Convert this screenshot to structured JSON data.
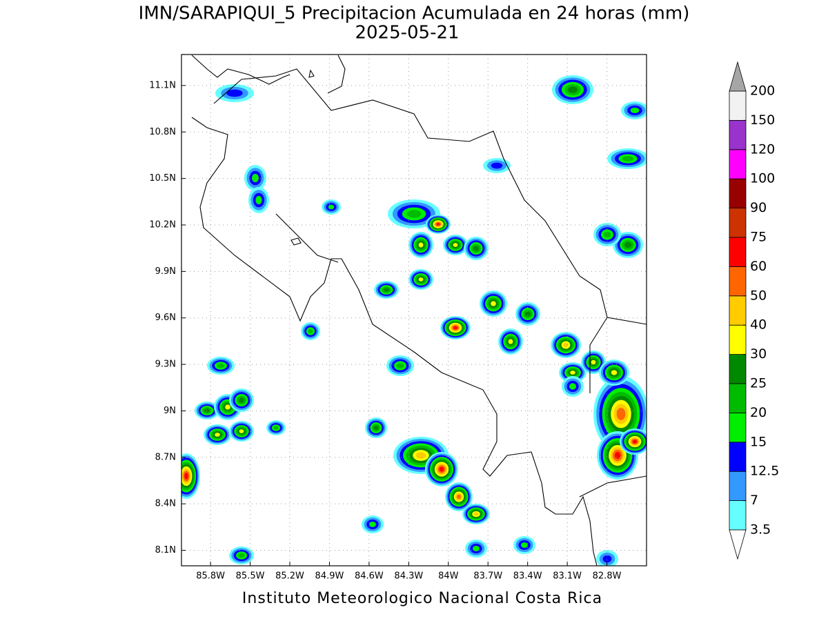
{
  "map": {
    "title": "IMN/SARAPIQUI_5 Precipitacion Acumulada en 24 horas (mm)",
    "subtitle": "2025-05-21",
    "footer": "Instituto Meteorologico Nacional Costa Rica",
    "lonlim": [
      -86.02,
      -82.5
    ],
    "latlim": [
      8.0,
      11.3
    ],
    "lon_ticks": [
      {
        "value": -85.8,
        "label": "85.8W"
      },
      {
        "value": -85.5,
        "label": "85.5W"
      },
      {
        "value": -85.2,
        "label": "85.2W"
      },
      {
        "value": -84.9,
        "label": "84.9W"
      },
      {
        "value": -84.6,
        "label": "84.6W"
      },
      {
        "value": -84.3,
        "label": "84.3W"
      },
      {
        "value": -84.0,
        "label": "84W"
      },
      {
        "value": -83.7,
        "label": "83.7W"
      },
      {
        "value": -83.4,
        "label": "83.4W"
      },
      {
        "value": -83.1,
        "label": "83.1W"
      },
      {
        "value": -82.8,
        "label": "82.8W"
      }
    ],
    "lat_ticks": [
      {
        "value": 8.1,
        "label": "8.1N"
      },
      {
        "value": 8.4,
        "label": "8.4N"
      },
      {
        "value": 8.7,
        "label": "8.7N"
      },
      {
        "value": 9.0,
        "label": "9N"
      },
      {
        "value": 9.3,
        "label": "9.3N"
      },
      {
        "value": 9.6,
        "label": "9.6N"
      },
      {
        "value": 9.9,
        "label": "9.9N"
      },
      {
        "value": 10.2,
        "label": "10.2N"
      },
      {
        "value": 10.5,
        "label": "10.5N"
      },
      {
        "value": 10.8,
        "label": "10.8N"
      },
      {
        "value": 11.1,
        "label": "11.1N"
      }
    ],
    "grid": true,
    "colorbar": {
      "levels": [
        3.5,
        7,
        12.5,
        15,
        20,
        25,
        30,
        40,
        50,
        60,
        75,
        90,
        100,
        120,
        150,
        200
      ],
      "colors": [
        "#66ffff",
        "#3399ff",
        "#0000ff",
        "#00ee00",
        "#00bb00",
        "#008800",
        "#ffff00",
        "#ffcc00",
        "#ff6600",
        "#ff0000",
        "#cc3300",
        "#990000",
        "#ff00ff",
        "#9933cc",
        "#f2f2f2"
      ],
      "under_color": "#ffffff",
      "over_color": "#a6a6a6"
    }
  }
}
